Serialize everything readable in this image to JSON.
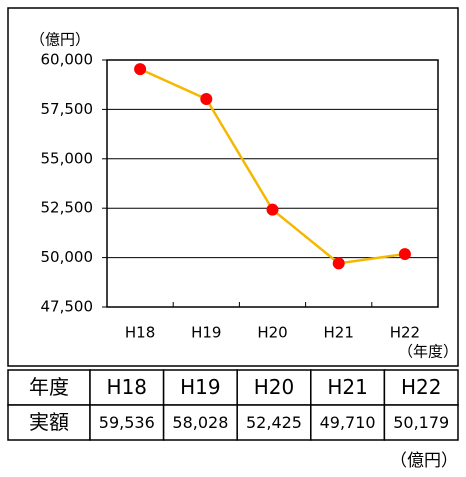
{
  "chart_data": {
    "type": "line",
    "y_unit": "（億円）",
    "x_unit": "（年度）",
    "categories": [
      "H18",
      "H19",
      "H20",
      "H21",
      "H22"
    ],
    "series": [
      {
        "color": "#f5b800",
        "marker_color": "#ff0000",
        "values": [
          59536,
          58028,
          52425,
          49710,
          50179
        ]
      }
    ],
    "ylim": [
      47500,
      60000
    ],
    "yticks": [
      {
        "value": 47500,
        "label": "47,500"
      },
      {
        "value": 50000,
        "label": "50,000"
      },
      {
        "value": 52500,
        "label": "52,500"
      },
      {
        "value": 55000,
        "label": "55,000"
      },
      {
        "value": 57500,
        "label": "57,500"
      },
      {
        "value": 60000,
        "label": "60,000"
      }
    ],
    "grid": true
  },
  "table": {
    "rows": [
      [
        "年度",
        "H18",
        "H19",
        "H20",
        "H21",
        "H22"
      ],
      [
        "実額",
        "59,536",
        "58,028",
        "52,425",
        "49,710",
        "50,179"
      ]
    ]
  },
  "footer": "（億円）"
}
